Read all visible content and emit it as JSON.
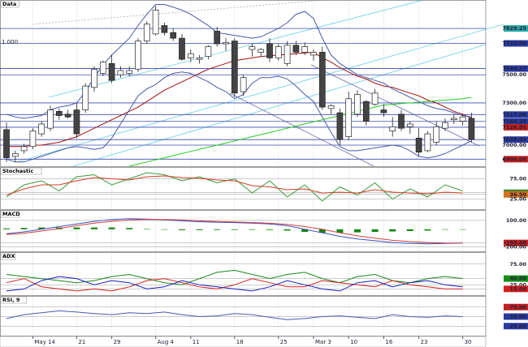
{
  "chart_data": [
    {
      "type": "candlestick",
      "title": "Data",
      "annotation": "1.000",
      "categories": [
        null,
        null,
        null,
        "May 14",
        null,
        null,
        null,
        null,
        "21",
        null,
        null,
        null,
        "29",
        null,
        null,
        null,
        null,
        "Aug 4",
        null,
        null,
        null,
        "11",
        null,
        null,
        null,
        null,
        "18",
        null,
        null,
        null,
        null,
        "25",
        null,
        null,
        null,
        "Mar 3",
        null,
        null,
        null,
        "10",
        null,
        null,
        null,
        "16",
        null,
        null,
        null,
        "23",
        null,
        null,
        null,
        null,
        "30",
        null
      ],
      "open": [
        7110,
        6920,
        6960,
        6990,
        7080,
        7120,
        7240,
        7220,
        7250,
        7250,
        7410,
        7510,
        7580,
        7500,
        7510,
        7540,
        7740,
        7790,
        7850,
        7800,
        7760,
        7620,
        7610,
        7630,
        7810,
        7720,
        7740,
        7380,
        7680,
        7660,
        7720,
        7620,
        7580,
        7710,
        7660,
        7640,
        7660,
        7260,
        7230,
        7060,
        7220,
        7310,
        7290,
        7250,
        7100,
        7220,
        7130,
        7050,
        6960,
        7020,
        7120,
        7180,
        7170,
        7190
      ],
      "high": [
        7160,
        6960,
        7010,
        7120,
        7170,
        7280,
        7260,
        7250,
        7300,
        7440,
        7560,
        7600,
        7640,
        7560,
        7560,
        7760,
        7880,
        7990,
        7870,
        7830,
        7790,
        7680,
        7640,
        7710,
        7840,
        7760,
        7760,
        7500,
        7720,
        7690,
        7760,
        7720,
        7740,
        7740,
        7730,
        7680,
        7700,
        7290,
        7260,
        7380,
        7390,
        7320,
        7400,
        7290,
        7200,
        7250,
        7170,
        7120,
        7100,
        7170,
        7190,
        7220,
        7220,
        7230
      ],
      "low": [
        6880,
        6880,
        6940,
        6970,
        7060,
        7100,
        7180,
        7190,
        7050,
        7230,
        7380,
        7490,
        7440,
        7480,
        7490,
        7520,
        7720,
        7780,
        7780,
        7740,
        7600,
        7590,
        7580,
        7610,
        7700,
        7670,
        7340,
        7350,
        7630,
        7630,
        7590,
        7600,
        7560,
        7640,
        7640,
        7600,
        7250,
        7220,
        7000,
        7040,
        7200,
        7140,
        7280,
        7200,
        7060,
        7100,
        7080,
        6920,
        6950,
        7000,
        7100,
        7150,
        7140,
        7020
      ],
      "close": [
        6910,
        6940,
        6990,
        7100,
        7150,
        7250,
        7210,
        7200,
        7080,
        7420,
        7540,
        7590,
        7460,
        7530,
        7530,
        7740,
        7860,
        7960,
        7800,
        7760,
        7610,
        7650,
        7620,
        7700,
        7720,
        7730,
        7370,
        7480,
        7700,
        7680,
        7620,
        7700,
        7710,
        7660,
        7700,
        7660,
        7270,
        7280,
        7040,
        7330,
        7360,
        7170,
        7370,
        7230,
        7130,
        7120,
        7150,
        6950,
        7080,
        7130,
        7160,
        7190,
        7200,
        7040
      ],
      "series": [
        {
          "color": "#a01010",
          "values": [
            6990,
            6990,
            6990,
            7000,
            7000,
            7010,
            7020,
            7040,
            7060,
            7090,
            7120,
            7150,
            7180,
            7210,
            7240,
            7270,
            7310,
            7350,
            7390,
            7420,
            7450,
            7480,
            7510,
            7540,
            7560,
            7580,
            7600,
            7610,
            7620,
            7630,
            7635,
            7640,
            7645,
            7650,
            7655,
            7660,
            7620,
            7590,
            7550,
            7520,
            7490,
            7470,
            7440,
            7420,
            7410,
            7390,
            7370,
            7350,
            7320,
            7300,
            7270,
            7240,
            7220,
            7190
          ]
        },
        {
          "color": "#4a5aa8",
          "values": [
            7220,
            7200,
            7190,
            7200,
            7210,
            7250,
            7270,
            7280,
            7300,
            7380,
            7480,
            7570,
            7640,
            7700,
            7760,
            7850,
            7930,
            8000,
            8000,
            7980,
            7960,
            7930,
            7890,
            7850,
            7800,
            7790,
            7780,
            7770,
            7760,
            7770,
            7800,
            7830,
            7870,
            7930,
            7950,
            7900,
            7760,
            7640,
            7580,
            7540,
            7500,
            7480,
            7460,
            7440,
            7400,
            7370,
            7340,
            7310,
            7280,
            7260,
            7250,
            7230,
            7210,
            7200
          ]
        },
        {
          "color": "#4a5aa8",
          "values": [
            6900,
            6880,
            6880,
            6900,
            6920,
            6940,
            6960,
            6980,
            6990,
            6980,
            6970,
            6980,
            7050,
            7150,
            7250,
            7350,
            7400,
            7430,
            7480,
            7510,
            7520,
            7510,
            7480,
            7450,
            7410,
            7380,
            7330,
            7360,
            7440,
            7480,
            7480,
            7490,
            7470,
            7420,
            7360,
            7310,
            7200,
            7090,
            6990,
            6960,
            6960,
            6970,
            6980,
            6990,
            7000,
            6990,
            6960,
            6920,
            6910,
            6920,
            6940,
            6970,
            7000,
            7030
          ]
        },
        {
          "color": "#22cc22",
          "values": [
            null,
            null,
            null,
            null,
            null,
            null,
            null,
            null,
            null,
            null,
            null,
            null,
            null,
            null,
            6850,
            6865,
            6880,
            6895,
            6910,
            6925,
            6940,
            6955,
            6970,
            6985,
            7000,
            7015,
            7030,
            7045,
            7060,
            7075,
            7090,
            7105,
            7120,
            7135,
            7150,
            7165,
            7180,
            7195,
            7210,
            7225,
            7240,
            7255,
            7270,
            7285,
            7290,
            7295,
            7300,
            7305,
            7310,
            7315,
            7320,
            7325,
            7330,
            7340
          ]
        }
      ],
      "ylim": [
        6850,
        8020
      ],
      "yticks": [
        {
          "value": 7829.25,
          "label": "7829.25"
        },
        {
          "value": 7723,
          "label": "7723.00"
        },
        {
          "value": 7544.27,
          "label": "7544.27"
        },
        {
          "value": 7500,
          "label": "7500.00"
        },
        {
          "value": 7300,
          "label": "7300.00"
        },
        {
          "value": 7217,
          "label": "7217.00"
        },
        {
          "value": 7168.35,
          "label": "7168.35"
        },
        {
          "value": 7126.95,
          "label": "7126.95"
        },
        {
          "value": 7039,
          "label": "7039.00"
        },
        {
          "value": 7000,
          "label": "7000.00"
        },
        {
          "value": 6900,
          "label": "6900.00"
        }
      ],
      "ytick_colors": [
        "#2aa7a7",
        "#2a3aa0",
        "#2a3aa0",
        null,
        null,
        "#2a3aa0",
        "#2a3aa0",
        "#c02020",
        "#2a3aa0",
        null,
        "#c02020"
      ],
      "grid": true
    },
    {
      "type": "line",
      "title": "Stochastic",
      "x": [
        0,
        2,
        4,
        6,
        8,
        10,
        12,
        14,
        16,
        18,
        20,
        22,
        24,
        26,
        28,
        30,
        32,
        34,
        36,
        38,
        40,
        42,
        44,
        46,
        48,
        50,
        52
      ],
      "series": [
        {
          "color": "#3a9a3a",
          "values": [
            30,
            60,
            70,
            45,
            80,
            85,
            60,
            75,
            90,
            85,
            70,
            80,
            65,
            75,
            40,
            70,
            30,
            60,
            20,
            55,
            35,
            65,
            25,
            50,
            30,
            60,
            45
          ]
        },
        {
          "color": "#d04020",
          "values": [
            35,
            50,
            60,
            60,
            70,
            78,
            75,
            72,
            80,
            82,
            78,
            76,
            72,
            70,
            58,
            55,
            48,
            50,
            40,
            42,
            40,
            48,
            42,
            40,
            38,
            42,
            40
          ]
        }
      ],
      "ylim": [
        0,
        100
      ],
      "yticks": [
        {
          "value": 75,
          "label": "75.00"
        },
        {
          "value": 40.5,
          "label": "40.50"
        },
        {
          "value": 36.5,
          "label": "36.50"
        },
        {
          "value": 25,
          "label": "25.00"
        }
      ],
      "ytick_colors": [
        null,
        "#2a8a2a",
        "#d07020",
        null
      ],
      "grid": true
    },
    {
      "type": "line",
      "title": "MACD",
      "x": [
        0,
        2,
        4,
        6,
        8,
        10,
        12,
        14,
        16,
        18,
        20,
        22,
        24,
        26,
        28,
        30,
        32,
        34,
        36,
        38,
        40,
        42,
        44,
        46,
        48,
        50,
        52
      ],
      "series": [
        {
          "type": "bar",
          "color": "#118811",
          "values": [
            10,
            15,
            20,
            20,
            20,
            20,
            20,
            15,
            5,
            -5,
            -10,
            -10,
            -8,
            -7,
            -6,
            -8,
            -15,
            -30,
            -40,
            -40,
            -35,
            -30,
            -25,
            -20,
            -15,
            -5,
            0
          ]
        },
        {
          "color": "#4050c0",
          "values": [
            -50,
            -30,
            0,
            30,
            60,
            90,
            110,
            120,
            115,
            105,
            95,
            85,
            80,
            75,
            70,
            60,
            40,
            0,
            -40,
            -80,
            -110,
            -130,
            -150,
            -160,
            -165,
            -160,
            -155
          ]
        },
        {
          "color": "#d04040",
          "values": [
            -60,
            -45,
            -20,
            10,
            40,
            70,
            90,
            105,
            110,
            110,
            105,
            95,
            88,
            82,
            76,
            68,
            55,
            30,
            0,
            -40,
            -75,
            -100,
            -125,
            -140,
            -150,
            -155,
            -155
          ]
        }
      ],
      "ylim": [
        -250,
        200
      ],
      "yticks": [
        {
          "value": 100,
          "label": "100.00"
        },
        {
          "value": -155,
          "label": "-155.00"
        },
        {
          "value": -200,
          "label": "-200.00"
        }
      ],
      "ytick_colors": [
        null,
        "#c02020",
        null
      ],
      "grid": true
    },
    {
      "type": "line",
      "title": "ADX",
      "x": [
        0,
        2,
        4,
        6,
        8,
        10,
        12,
        14,
        16,
        18,
        20,
        22,
        24,
        26,
        28,
        30,
        32,
        34,
        36,
        38,
        40,
        42,
        44,
        46,
        48,
        50,
        52
      ],
      "series": [
        {
          "color": "#1a8a1a",
          "values": [
            50,
            45,
            40,
            35,
            30,
            35,
            45,
            50,
            40,
            30,
            25,
            40,
            55,
            60,
            50,
            40,
            50,
            55,
            40,
            30,
            45,
            50,
            35,
            30,
            40,
            45,
            40
          ]
        },
        {
          "color": "#d02020",
          "values": [
            30,
            40,
            20,
            15,
            10,
            15,
            10,
            20,
            35,
            40,
            30,
            20,
            15,
            25,
            40,
            30,
            20,
            20,
            35,
            30,
            25,
            20,
            35,
            25,
            20,
            15,
            15
          ]
        },
        {
          "color": "#1a20c0",
          "values": [
            10,
            15,
            35,
            45,
            40,
            25,
            35,
            30,
            15,
            20,
            35,
            25,
            20,
            15,
            10,
            20,
            35,
            25,
            15,
            10,
            30,
            35,
            20,
            30,
            35,
            25,
            20
          ]
        }
      ],
      "ylim": [
        0,
        100
      ],
      "yticks": [
        {
          "value": 75,
          "label": "75.00"
        },
        {
          "value": 40,
          "label": "40.00"
        },
        {
          "value": 25,
          "label": "25.00"
        },
        {
          "value": 15,
          "label": "15.00"
        }
      ],
      "ytick_colors": [
        null,
        "#1a8a1a",
        null,
        "#d02020"
      ],
      "grid": true
    },
    {
      "type": "line",
      "title": "RSI, 9",
      "x": [
        0,
        2,
        4,
        6,
        8,
        10,
        12,
        14,
        16,
        18,
        20,
        22,
        24,
        26,
        28,
        30,
        32,
        34,
        36,
        38,
        40,
        42,
        44,
        46,
        48,
        50,
        52
      ],
      "series": [
        {
          "color": "#4a5ab0",
          "values": [
            45,
            55,
            60,
            65,
            62,
            58,
            55,
            60,
            58,
            62,
            55,
            50,
            52,
            58,
            55,
            48,
            42,
            45,
            50,
            52,
            48,
            45,
            55,
            50,
            48,
            52,
            50
          ]
        }
      ],
      "ylim": [
        0,
        100
      ],
      "yticks": [
        {
          "value": 75,
          "label": "75.00"
        },
        {
          "value": 50,
          "label": "50.00"
        },
        {
          "value": 25,
          "label": "25.00"
        }
      ],
      "ytick_colors": [
        "#c02020",
        "#2a3aa0",
        "#2a3aa0"
      ],
      "grid": true
    }
  ]
}
